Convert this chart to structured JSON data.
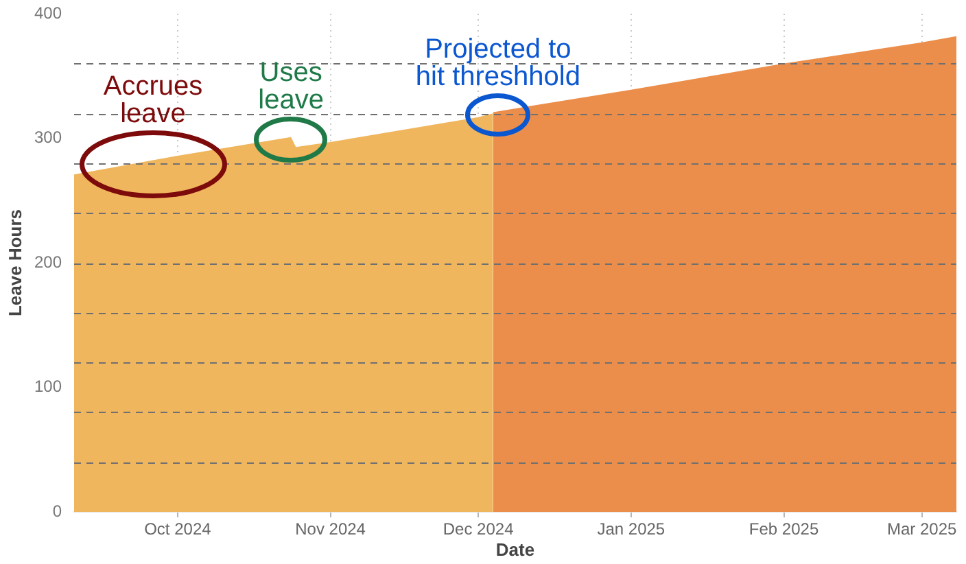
{
  "chart_data": {
    "type": "area",
    "xlabel": "Date",
    "ylabel": "Leave Hours",
    "series": [
      {
        "color": "#f0b65e",
        "x": [
          "2024-09-10",
          "2024-10-01",
          "2024-10-24",
          "2024-10-25",
          "2024-11-01",
          "2024-12-01",
          "2024-12-04"
        ],
        "values": [
          271,
          286,
          301,
          293,
          297,
          317,
          320
        ]
      },
      {
        "color": "#ec8e4b",
        "x": [
          "2024-12-04",
          "2025-01-01",
          "2025-02-01",
          "2025-03-01",
          "2025-03-08"
        ],
        "values": [
          321,
          339,
          360,
          377,
          382
        ]
      }
    ],
    "xlim": [
      "2024-09-10",
      "2025-03-08"
    ],
    "xticks": [
      {
        "value": "2024-10-01",
        "label": "Oct 2024"
      },
      {
        "value": "2024-11-01",
        "label": "Nov 2024"
      },
      {
        "value": "2024-12-01",
        "label": "Dec 2024"
      },
      {
        "value": "2025-01-01",
        "label": "Jan 2025"
      },
      {
        "value": "2025-02-01",
        "label": "Feb 2025"
      },
      {
        "value": "2025-03-01",
        "label": "Mar 2025"
      }
    ],
    "ylim": [
      0,
      400
    ],
    "yticks": [
      0,
      100,
      200,
      300,
      400
    ],
    "grid": "x",
    "ref_lines": [
      {
        "axis": "y",
        "value": 40,
        "color": "#707070",
        "line_style": "dashed"
      },
      {
        "axis": "y",
        "value": 80,
        "color": "#707070",
        "line_style": "dashed"
      },
      {
        "axis": "y",
        "value": 120,
        "color": "#707070",
        "line_style": "dashed"
      },
      {
        "axis": "y",
        "value": 160,
        "color": "#707070",
        "line_style": "dashed"
      },
      {
        "axis": "y",
        "value": 200,
        "color": "#707070",
        "line_style": "dashed"
      },
      {
        "axis": "y",
        "value": 240,
        "color": "#707070",
        "line_style": "dashed"
      },
      {
        "axis": "y",
        "value": 280,
        "color": "#707070",
        "line_style": "dashed"
      },
      {
        "axis": "y",
        "value": 320,
        "color": "#707070",
        "line_style": "dashed"
      },
      {
        "axis": "y",
        "value": 360,
        "color": "#707070",
        "line_style": "dashed"
      }
    ],
    "annotations": [
      {
        "text": "Accrues leave",
        "x": "2024-09-26",
        "y": 279
      },
      {
        "text": "Uses leave",
        "x": "2024-10-24",
        "y": 299
      },
      {
        "text": "Projected to hit threshhold",
        "x": "2024-12-05",
        "y": 319
      }
    ]
  }
}
